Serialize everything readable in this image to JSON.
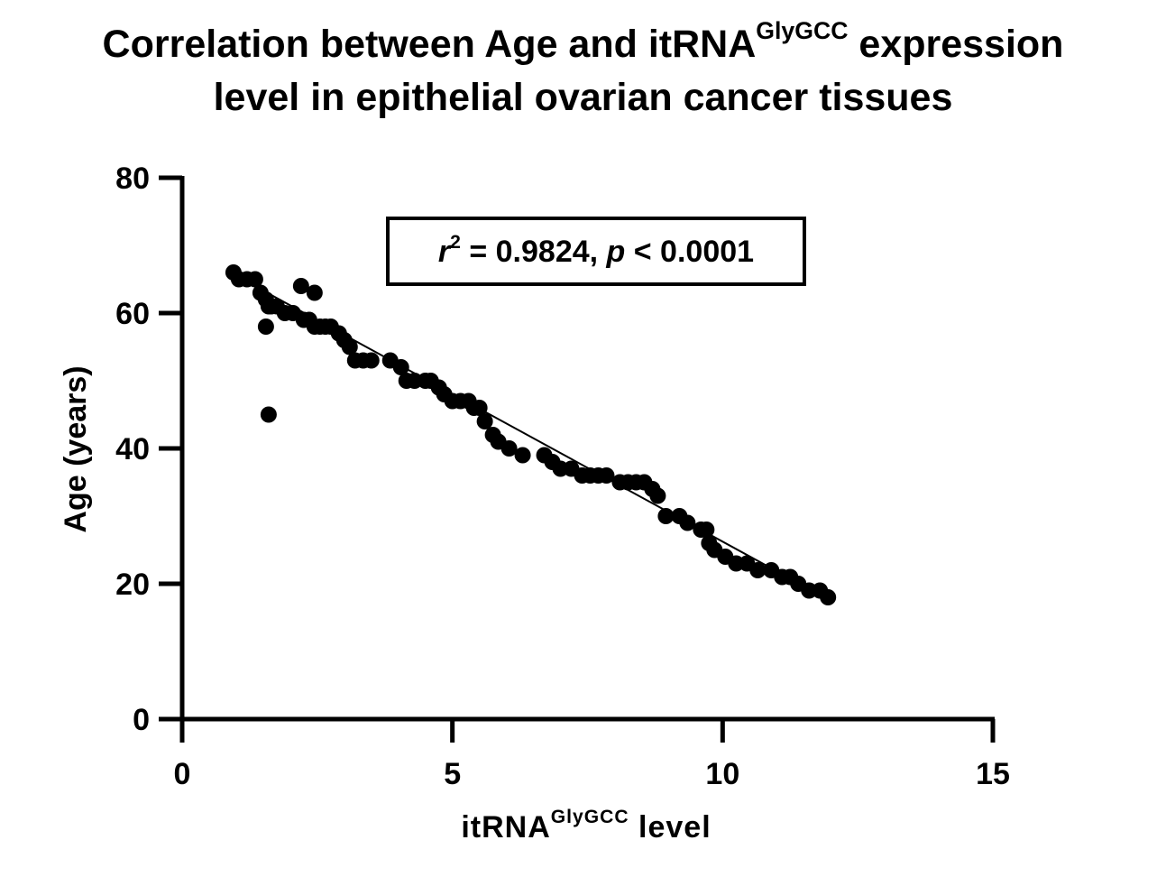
{
  "chart_data": {
    "type": "scatter",
    "title_main": "Correlation between Age and itRNA",
    "title_sup": "GlyGCC",
    "title_after": " expression",
    "title_line2": "level in epithelial ovarian cancer tissues",
    "xlabel_main": "itRNA",
    "xlabel_sup": "GlyGCC",
    "xlabel_after": " level",
    "ylabel": "Age (years)",
    "xlim": [
      0,
      15
    ],
    "ylim": [
      0,
      80
    ],
    "x_ticks": [
      "0",
      "5",
      "10",
      "15"
    ],
    "y_ticks": [
      "0",
      "20",
      "40",
      "60",
      "80"
    ],
    "annotation": {
      "r_symbol": "r",
      "r_sup": "2",
      "r_text": " = 0.9824, ",
      "p_symbol": "p",
      "p_text": " < 0.0001"
    },
    "regression_line": {
      "x": [
        1.0,
        12.0
      ],
      "y": [
        65.5,
        17.5
      ]
    },
    "points": {
      "x": [
        0.95,
        1.05,
        1.2,
        1.35,
        1.45,
        1.55,
        1.6,
        1.65,
        1.75,
        1.9,
        2.05,
        2.2,
        2.25,
        2.35,
        2.45,
        2.55,
        2.65,
        2.75,
        2.9,
        3.0,
        3.1,
        3.2,
        3.35,
        3.5,
        3.85,
        4.05,
        4.15,
        4.3,
        4.5,
        4.6,
        4.75,
        4.85,
        5.0,
        5.15,
        5.3,
        5.4,
        5.5,
        5.6,
        5.75,
        5.85,
        6.05,
        6.3,
        6.7,
        6.85,
        7.0,
        7.2,
        7.4,
        7.55,
        7.7,
        7.85,
        8.1,
        8.25,
        8.4,
        8.55,
        8.7,
        8.8,
        8.95,
        9.2,
        9.35,
        9.6,
        9.7,
        9.75,
        9.85,
        10.05,
        10.25,
        10.45,
        10.65,
        10.9,
        11.1,
        11.25,
        11.4,
        11.6,
        11.8,
        11.95,
        1.55,
        1.6,
        2.45
      ],
      "y": [
        66,
        65,
        65,
        65,
        63,
        62,
        61,
        61,
        61,
        60,
        60,
        64,
        59,
        59,
        58,
        58,
        58,
        58,
        57,
        56,
        55,
        53,
        53,
        53,
        53,
        52,
        50,
        50,
        50,
        50,
        49,
        48,
        47,
        47,
        47,
        46,
        46,
        44,
        42,
        41,
        40,
        39,
        39,
        38,
        37,
        37,
        36,
        36,
        36,
        36,
        35,
        35,
        35,
        35,
        34,
        33,
        30,
        30,
        29,
        28,
        28,
        26,
        25,
        24,
        23,
        23,
        22,
        22,
        21,
        21,
        20,
        19,
        19,
        18,
        58,
        45,
        63
      ]
    }
  }
}
